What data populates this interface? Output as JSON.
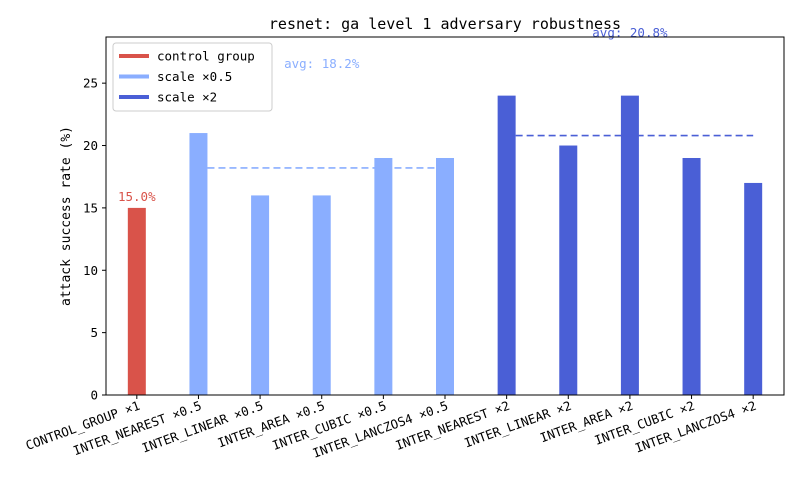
{
  "chart_data": {
    "type": "bar",
    "title": "resnet: ga level 1 adversary robustness",
    "xlabel": "",
    "ylabel": "attack success rate (%)",
    "ylim": [
      0,
      28.7
    ],
    "yticks": [
      0,
      5,
      10,
      15,
      20,
      25
    ],
    "grid": false,
    "legend_position": "top-left",
    "categories": [
      "CONTROL_GROUP ×1",
      "INTER_NEAREST ×0.5",
      "INTER_LINEAR ×0.5",
      "INTER_AREA ×0.5",
      "INTER_CUBIC ×0.5",
      "INTER_LANCZOS4 ×0.5",
      "INTER_NEAREST ×2",
      "INTER_LINEAR ×2",
      "INTER_AREA ×2",
      "INTER_CUBIC ×2",
      "INTER_LANCZOS4 ×2"
    ],
    "values": [
      15,
      21,
      16,
      16,
      19,
      19,
      24,
      20,
      24,
      19,
      17
    ],
    "bar_group": [
      0,
      1,
      1,
      1,
      1,
      1,
      2,
      2,
      2,
      2,
      2
    ],
    "series": [
      {
        "name": "control group",
        "color": "#d9534a"
      },
      {
        "name": "scale ×0.5",
        "color": "#8aaeff"
      },
      {
        "name": "scale ×2",
        "color": "#4a5fd6"
      }
    ],
    "annotations": [
      {
        "text": "15.0%",
        "value": 15.0,
        "group": 0
      },
      {
        "text": "avg: 18.2%",
        "value": 18.2,
        "group": 1
      },
      {
        "text": "avg: 20.8%",
        "value": 20.8,
        "group": 2
      }
    ]
  }
}
